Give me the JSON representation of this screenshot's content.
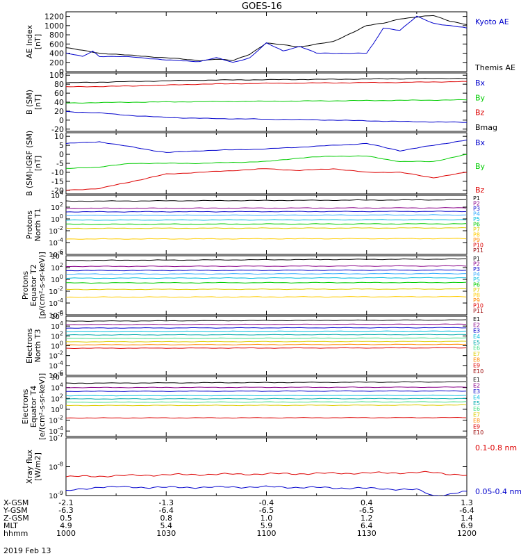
{
  "title": "GOES-16",
  "date_label": "2019 Feb 13",
  "time_axis": {
    "ticks": [
      "1000",
      "1030",
      "1100",
      "1130",
      "1200"
    ],
    "rows": [
      {
        "label": "X-GSM",
        "values": [
          "-2.1",
          "-1.3",
          "-0.4",
          "0.4",
          "1.3"
        ]
      },
      {
        "label": "Y-GSM",
        "values": [
          "-6.3",
          "-6.4",
          "-6.5",
          "-6.5",
          "-6.4"
        ]
      },
      {
        "label": "Z-GSM",
        "values": [
          "0.5",
          "0.8",
          "1.0",
          "1.2",
          "1.4"
        ]
      },
      {
        "label": "MLT",
        "values": [
          "4.9",
          "5.4",
          "5.9",
          "6.4",
          "6.9"
        ]
      },
      {
        "label": "hhmm",
        "values": [
          "1000",
          "1030",
          "1100",
          "1130",
          "1200"
        ]
      }
    ]
  },
  "colors": {
    "black": "#000000",
    "blue": "#0000cc",
    "green": "#00cc00",
    "red": "#dd0000",
    "purple": "#880088",
    "cyan": "#00bbdd",
    "teal": "#00aaaa",
    "orange": "#ff8800",
    "yellow": "#ddcc00",
    "mint": "#44dd88",
    "lightblue": "#33aaff",
    "darkred": "#990000"
  },
  "chart_data": [
    {
      "type": "line",
      "ylabel": [
        "AE Index",
        "[nT]"
      ],
      "ylim": [
        0,
        1300
      ],
      "yticks": [
        0,
        200,
        400,
        600,
        800,
        1000,
        1200
      ],
      "ytick_labels": [
        "0",
        "200",
        "400",
        "600",
        "800",
        "1000",
        "1200"
      ],
      "legend": [
        {
          "name": "Kyoto AE",
          "color": "#0000cc"
        },
        {
          "name": "Themis AE",
          "color": "#000000"
        }
      ],
      "series": [
        {
          "name": "Themis AE",
          "color": "#000000",
          "x": [
            "1000",
            "1010",
            "1020",
            "1030",
            "1040",
            "1045",
            "1050",
            "1055",
            "1100",
            "1110",
            "1120",
            "1130",
            "1135",
            "1140",
            "1150",
            "1155",
            "1200"
          ],
          "y": [
            520,
            400,
            350,
            300,
            240,
            270,
            240,
            380,
            620,
            540,
            650,
            1000,
            1050,
            1150,
            1220,
            1100,
            1020
          ]
        },
        {
          "name": "Kyoto AE",
          "color": "#0000cc",
          "x": [
            "1000",
            "1005",
            "1008",
            "1010",
            "1020",
            "1030",
            "1040",
            "1045",
            "1050",
            "1055",
            "1100",
            "1105",
            "1110",
            "1115",
            "1120",
            "1130",
            "1132",
            "1135",
            "1140",
            "1145",
            "1150",
            "1155",
            "1200"
          ],
          "y": [
            400,
            330,
            450,
            330,
            320,
            250,
            220,
            300,
            200,
            300,
            620,
            450,
            550,
            400,
            400,
            400,
            600,
            950,
            900,
            1200,
            1050,
            1000,
            950
          ]
        }
      ]
    },
    {
      "type": "line",
      "ylabel": [
        "B (SM)",
        "[nT]"
      ],
      "ylim": [
        -25,
        105
      ],
      "yticks": [
        -20,
        0,
        20,
        40,
        60,
        80,
        100
      ],
      "ytick_labels": [
        "-20",
        "0",
        "20",
        "40",
        "60",
        "80",
        "100"
      ],
      "legend": [
        {
          "name": "Bx",
          "color": "#0000cc"
        },
        {
          "name": "By",
          "color": "#00cc00"
        },
        {
          "name": "Bz",
          "color": "#dd0000"
        },
        {
          "name": "Bmag",
          "color": "#000000"
        }
      ],
      "series": [
        {
          "name": "Bmag",
          "color": "#000000",
          "x": [
            "1000",
            "1020",
            "1040",
            "1100",
            "1120",
            "1140",
            "1200"
          ],
          "y": [
            83,
            86,
            89,
            90,
            91,
            92,
            93
          ]
        },
        {
          "name": "Bz",
          "color": "#dd0000",
          "x": [
            "1000",
            "1020",
            "1040",
            "1100",
            "1120",
            "1140",
            "1200"
          ],
          "y": [
            74,
            76,
            80,
            82,
            83,
            84,
            86
          ]
        },
        {
          "name": "By",
          "color": "#00cc00",
          "x": [
            "1000",
            "1020",
            "1040",
            "1100",
            "1120",
            "1140",
            "1200"
          ],
          "y": [
            38,
            40,
            41,
            42,
            43,
            44,
            45
          ]
        },
        {
          "name": "Bx",
          "color": "#0000cc",
          "x": [
            "1000",
            "1010",
            "1020",
            "1030",
            "1040",
            "1100",
            "1120",
            "1140",
            "1200"
          ],
          "y": [
            19,
            16,
            10,
            6,
            4,
            2,
            0,
            -3,
            -5
          ]
        }
      ]
    },
    {
      "type": "line",
      "ylabel": [
        "B (SM)-IGRF (SM)",
        "[nT]"
      ],
      "ylim": [
        -22,
        12
      ],
      "yticks": [
        -20,
        -15,
        -10,
        -5,
        0,
        5,
        10
      ],
      "ytick_labels": [
        "-20",
        "-15",
        "-10",
        "-5",
        "0",
        "5",
        "10"
      ],
      "legend": [
        {
          "name": "Bx",
          "color": "#0000cc"
        },
        {
          "name": "By",
          "color": "#00cc00"
        },
        {
          "name": "Bz",
          "color": "#dd0000"
        }
      ],
      "series": [
        {
          "name": "Bx",
          "color": "#0000cc",
          "x": [
            "1000",
            "1010",
            "1020",
            "1030",
            "1040",
            "1100",
            "1120",
            "1130",
            "1140",
            "1150",
            "1200"
          ],
          "y": [
            6,
            7,
            4,
            1,
            2,
            3,
            5,
            6,
            2,
            5,
            8
          ]
        },
        {
          "name": "By",
          "color": "#00cc00",
          "x": [
            "1000",
            "1010",
            "1020",
            "1030",
            "1040",
            "1100",
            "1110",
            "1120",
            "1130",
            "1140",
            "1150",
            "1200"
          ],
          "y": [
            -8,
            -7,
            -5,
            -5,
            -5,
            -4,
            -2,
            -1,
            -1,
            -4,
            -4,
            0
          ]
        },
        {
          "name": "Bz",
          "color": "#dd0000",
          "x": [
            "1000",
            "1010",
            "1020",
            "1030",
            "1040",
            "1100",
            "1110",
            "1120",
            "1130",
            "1140",
            "1150",
            "1200"
          ],
          "y": [
            -20,
            -19,
            -15,
            -11,
            -10,
            -8,
            -9,
            -8,
            -10,
            -10,
            -13,
            -10
          ]
        }
      ]
    },
    {
      "type": "line",
      "log": true,
      "ylabel": [
        "Protons",
        "North T1"
      ],
      "ylim_exp": [
        -6,
        4
      ],
      "ytick_exps": [
        -6,
        -4,
        -2,
        0,
        2,
        4
      ],
      "legend": [
        {
          "name": "P1",
          "color": "#000000"
        },
        {
          "name": "P2",
          "color": "#880088"
        },
        {
          "name": "P3",
          "color": "#0000cc"
        },
        {
          "name": "P4",
          "color": "#33aaff"
        },
        {
          "name": "P5",
          "color": "#00bbdd"
        },
        {
          "name": "P6",
          "color": "#00cc00"
        },
        {
          "name": "P7",
          "color": "#ddcc00"
        },
        {
          "name": "P8",
          "color": "#ffcc00"
        },
        {
          "name": "P9",
          "color": "#ff8800"
        },
        {
          "name": "P10",
          "color": "#dd0000"
        },
        {
          "name": "P11",
          "color": "#990000"
        }
      ],
      "levels": [
        3.0,
        1.8,
        1.2,
        0.6,
        -0.2,
        -0.9,
        -1.6,
        -3.4
      ],
      "colors": [
        "#000000",
        "#880088",
        "#0000cc",
        "#33aaff",
        "#00bbdd",
        "#00cc00",
        "#ddcc00",
        "#ffcc00"
      ]
    },
    {
      "type": "line",
      "log": true,
      "ylabel": [
        "Protons",
        "Equator T2",
        "[p/(cm²-s-sr-keV)]"
      ],
      "ylim_exp": [
        -6,
        4
      ],
      "ytick_exps": [
        -6,
        -4,
        -2,
        0,
        2,
        4
      ],
      "legend": [
        {
          "name": "P1",
          "color": "#000000"
        },
        {
          "name": "P2",
          "color": "#880088"
        },
        {
          "name": "P3",
          "color": "#0000cc"
        },
        {
          "name": "P4",
          "color": "#33aaff"
        },
        {
          "name": "P5",
          "color": "#00bbdd"
        },
        {
          "name": "P6",
          "color": "#00cc00"
        },
        {
          "name": "P7",
          "color": "#ddcc00"
        },
        {
          "name": "P8",
          "color": "#ffcc00"
        },
        {
          "name": "P9",
          "color": "#ff8800"
        },
        {
          "name": "P10",
          "color": "#dd0000"
        },
        {
          "name": "P11",
          "color": "#990000"
        }
      ],
      "levels": [
        3.2,
        2.2,
        1.5,
        0.9,
        0.2,
        -0.6,
        -1.7,
        -3.0
      ],
      "colors": [
        "#000000",
        "#880088",
        "#0000cc",
        "#33aaff",
        "#00bbdd",
        "#00cc00",
        "#ddcc00",
        "#ffcc00"
      ]
    },
    {
      "type": "line",
      "log": true,
      "ylabel": [
        "Electrons",
        "North T3"
      ],
      "ylim_exp": [
        -6,
        6
      ],
      "ytick_exps": [
        -6,
        -4,
        -2,
        0,
        2,
        4,
        6
      ],
      "legend": [
        {
          "name": "E1",
          "color": "#000000"
        },
        {
          "name": "E2",
          "color": "#880088"
        },
        {
          "name": "E3",
          "color": "#0000cc"
        },
        {
          "name": "E4",
          "color": "#00bbdd"
        },
        {
          "name": "E5",
          "color": "#00aaaa"
        },
        {
          "name": "E6",
          "color": "#44dd88"
        },
        {
          "name": "E7",
          "color": "#ddcc00"
        },
        {
          "name": "E8",
          "color": "#ff8800"
        },
        {
          "name": "E9",
          "color": "#dd0000"
        },
        {
          "name": "E10",
          "color": "#990000"
        }
      ],
      "levels": [
        5.0,
        4.3,
        3.6,
        2.9,
        2.2,
        1.5,
        0.8,
        0.2,
        -0.5
      ],
      "colors": [
        "#000000",
        "#880088",
        "#0000cc",
        "#00bbdd",
        "#00aaaa",
        "#44dd88",
        "#ddcc00",
        "#ff8800",
        "#dd0000"
      ]
    },
    {
      "type": "line",
      "log": true,
      "ylabel": [
        "Electrons",
        "Equator T4",
        "[e/(cm²-s-sr-keV)]"
      ],
      "ylim_exp": [
        -5,
        6
      ],
      "ytick_exps": [
        -4,
        -2,
        0,
        2,
        4,
        6
      ],
      "legend": [
        {
          "name": "E1",
          "color": "#000000"
        },
        {
          "name": "E2",
          "color": "#880088"
        },
        {
          "name": "E3",
          "color": "#0000cc"
        },
        {
          "name": "E4",
          "color": "#00bbdd"
        },
        {
          "name": "E5",
          "color": "#00aaaa"
        },
        {
          "name": "E6",
          "color": "#44dd88"
        },
        {
          "name": "E7",
          "color": "#ddcc00"
        },
        {
          "name": "E8",
          "color": "#ff8800"
        },
        {
          "name": "E9",
          "color": "#dd0000"
        },
        {
          "name": "E10",
          "color": "#990000"
        }
      ],
      "levels": [
        4.8,
        4.0,
        3.3,
        2.5,
        1.9,
        1.3,
        0.7,
        -1.6
      ],
      "colors": [
        "#000000",
        "#880088",
        "#0000cc",
        "#00bbdd",
        "#00aaaa",
        "#44dd88",
        "#ddcc00",
        "#dd0000"
      ]
    },
    {
      "type": "line",
      "log": true,
      "ylabel": [
        "Xray  flux",
        "[W/m2]"
      ],
      "ylim_exp": [
        -9,
        -7
      ],
      "ytick_exps": [
        -9,
        -8,
        -7
      ],
      "legend": [
        {
          "name": "0.1-0.8 nm",
          "color": "#dd0000"
        },
        {
          "name": "0.05-0.4 nm",
          "color": "#0000cc"
        }
      ],
      "series": [
        {
          "name": "0.1-0.8 nm",
          "color": "#dd0000",
          "x": [
            "1000",
            "1030",
            "1100",
            "1130",
            "1150",
            "1200"
          ],
          "y_exp": [
            -8.35,
            -8.28,
            -8.25,
            -8.22,
            -8.2,
            -8.3
          ]
        },
        {
          "name": "0.05-0.4 nm",
          "color": "#0000cc",
          "x": [
            "1000",
            "1010",
            "1030",
            "1100",
            "1130",
            "1145",
            "1150",
            "1155",
            "1200"
          ],
          "y_exp": [
            -8.85,
            -8.7,
            -8.72,
            -8.7,
            -8.75,
            -8.8,
            -9.0,
            -8.95,
            -8.85
          ]
        }
      ]
    }
  ]
}
